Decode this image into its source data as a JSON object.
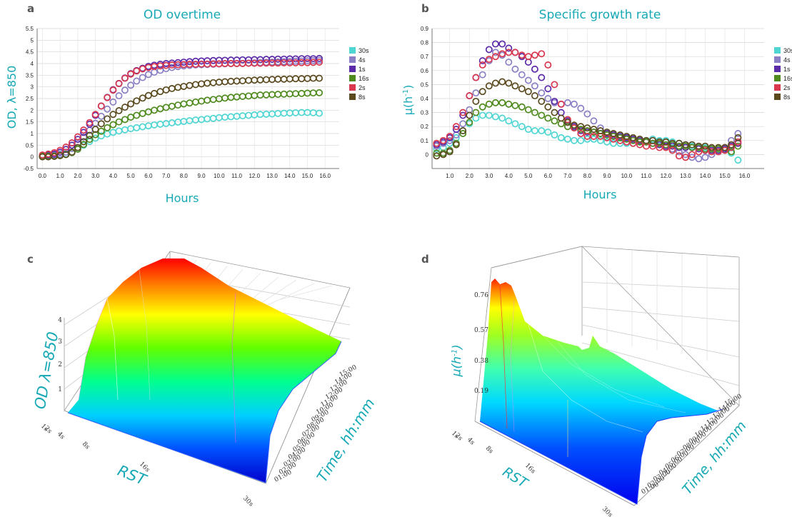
{
  "panels": {
    "a": {
      "label": "a"
    },
    "b": {
      "label": "b"
    },
    "c": {
      "label": "c"
    },
    "d": {
      "label": "d"
    }
  },
  "chart_data": [
    {
      "type": "scatter",
      "title": "OD overtime",
      "xlabel": "Hours",
      "ylabel": "OD, λ=850",
      "xlim": [
        -0.3,
        16.8
      ],
      "ylim": [
        -0.5,
        5.5
      ],
      "x_ticks": [
        "0.0",
        "1.0",
        "2.0",
        "3.0",
        "4.0",
        "5.0",
        "6.0",
        "7.0",
        "8.0",
        "9.0",
        "10.0",
        "11.0",
        "12.0",
        "13.0",
        "14.0",
        "15.0",
        "16.0"
      ],
      "y_ticks": [
        "-0.5",
        "0",
        "0.5",
        "1",
        "1.5",
        "2",
        "2.5",
        "3",
        "3.5",
        "4",
        "4.5",
        "5",
        "5.5"
      ],
      "grid": true,
      "legend": "right",
      "x": [
        0.0,
        0.33,
        0.67,
        1.0,
        1.33,
        1.67,
        2.0,
        2.33,
        2.67,
        3.0,
        3.33,
        3.67,
        4.0,
        4.33,
        4.67,
        5.0,
        5.33,
        5.67,
        6.0,
        6.33,
        6.67,
        7.0,
        7.33,
        7.67,
        8.0,
        8.33,
        8.67,
        9.0,
        9.33,
        9.67,
        10.0,
        10.33,
        10.67,
        11.0,
        11.33,
        11.67,
        12.0,
        12.33,
        12.67,
        13.0,
        13.33,
        13.67,
        14.0,
        14.33,
        14.67,
        15.0,
        15.33,
        15.67
      ],
      "series": [
        {
          "name": "30s",
          "color": "#4fd6d3",
          "values": [
            0.05,
            0.05,
            0.06,
            0.08,
            0.12,
            0.2,
            0.34,
            0.5,
            0.66,
            0.8,
            0.9,
            0.98,
            1.05,
            1.11,
            1.16,
            1.21,
            1.25,
            1.29,
            1.33,
            1.37,
            1.4,
            1.43,
            1.46,
            1.49,
            1.52,
            1.55,
            1.58,
            1.6,
            1.63,
            1.65,
            1.68,
            1.7,
            1.72,
            1.74,
            1.76,
            1.78,
            1.8,
            1.82,
            1.83,
            1.84,
            1.86,
            1.87,
            1.88,
            1.89,
            1.9,
            1.9,
            1.89,
            1.87
          ]
        },
        {
          "name": "4s",
          "color": "#8a7fc4",
          "values": [
            0.02,
            0.04,
            0.07,
            0.12,
            0.2,
            0.36,
            0.58,
            0.85,
            1.14,
            1.44,
            1.74,
            2.05,
            2.35,
            2.62,
            2.86,
            3.07,
            3.25,
            3.4,
            3.53,
            3.63,
            3.71,
            3.78,
            3.83,
            3.87,
            3.9,
            3.92,
            3.94,
            3.95,
            3.96,
            3.97,
            3.98,
            3.99,
            4.0,
            4.0,
            4.01,
            4.02,
            4.03,
            4.04,
            4.05,
            4.06,
            4.07,
            4.08,
            4.09,
            4.1,
            4.11,
            4.12,
            4.13,
            4.14
          ]
        },
        {
          "name": "1s",
          "color": "#5b2aa8",
          "values": [
            0.05,
            0.08,
            0.12,
            0.2,
            0.32,
            0.5,
            0.75,
            1.05,
            1.4,
            1.78,
            2.18,
            2.55,
            2.88,
            3.15,
            3.38,
            3.57,
            3.7,
            3.8,
            3.88,
            3.93,
            3.97,
            4.0,
            4.02,
            4.04,
            4.06,
            4.08,
            4.1,
            4.11,
            4.12,
            4.13,
            4.14,
            4.14,
            4.15,
            4.15,
            4.16,
            4.16,
            4.17,
            4.17,
            4.18,
            4.18,
            4.19,
            4.19,
            4.2,
            4.2,
            4.21,
            4.21,
            4.21,
            4.22
          ]
        },
        {
          "name": "16s",
          "color": "#4f8a1e",
          "values": [
            0.03,
            0.03,
            0.04,
            0.06,
            0.1,
            0.18,
            0.33,
            0.53,
            0.75,
            0.95,
            1.1,
            1.25,
            1.38,
            1.5,
            1.6,
            1.7,
            1.78,
            1.86,
            1.93,
            2.0,
            2.06,
            2.12,
            2.17,
            2.22,
            2.27,
            2.31,
            2.35,
            2.39,
            2.43,
            2.46,
            2.49,
            2.52,
            2.55,
            2.57,
            2.59,
            2.61,
            2.63,
            2.65,
            2.66,
            2.67,
            2.68,
            2.69,
            2.7,
            2.71,
            2.72,
            2.73,
            2.74,
            2.75
          ]
        },
        {
          "name": "2s",
          "color": "#d9384f",
          "values": [
            0.08,
            0.12,
            0.18,
            0.28,
            0.42,
            0.6,
            0.86,
            1.15,
            1.47,
            1.82,
            2.18,
            2.54,
            2.86,
            3.14,
            3.37,
            3.55,
            3.68,
            3.77,
            3.83,
            3.87,
            3.9,
            3.92,
            3.94,
            3.95,
            3.96,
            3.97,
            3.97,
            3.98,
            3.98,
            3.99,
            3.99,
            4.0,
            4.0,
            4.0,
            4.0,
            4.01,
            4.01,
            4.01,
            4.02,
            4.02,
            4.02,
            4.03,
            4.03,
            4.03,
            4.04,
            4.04,
            4.05,
            4.06
          ]
        },
        {
          "name": "8s",
          "color": "#5a4a1e",
          "values": [
            0.0,
            0.0,
            0.02,
            0.05,
            0.1,
            0.2,
            0.4,
            0.65,
            0.92,
            1.18,
            1.42,
            1.63,
            1.82,
            1.98,
            2.13,
            2.27,
            2.4,
            2.52,
            2.63,
            2.72,
            2.8,
            2.87,
            2.93,
            2.98,
            3.02,
            3.06,
            3.1,
            3.13,
            3.16,
            3.18,
            3.2,
            3.22,
            3.24,
            3.25,
            3.26,
            3.28,
            3.29,
            3.3,
            3.31,
            3.32,
            3.33,
            3.33,
            3.34,
            3.35,
            3.35,
            3.36,
            3.37,
            3.37
          ]
        }
      ]
    },
    {
      "type": "scatter",
      "title": "Specific growth rate",
      "xlabel": "Hours",
      "ylabel": "μ(h-1)",
      "xlim": [
        0.1,
        17.0
      ],
      "ylim": [
        -0.1,
        0.9
      ],
      "x_ticks": [
        "1.0",
        "2.0",
        "3.0",
        "4.0",
        "5.0",
        "6.0",
        "7.0",
        "8.0",
        "9.0",
        "10.0",
        "11.0",
        "12.0",
        "13.0",
        "14.0",
        "15.0",
        "16.0"
      ],
      "y_ticks": [
        "0",
        "0.1",
        "0.2",
        "0.3",
        "0.4",
        "0.5",
        "0.6",
        "0.7",
        "0.8",
        "0.9"
      ],
      "grid": true,
      "legend": "right",
      "x": [
        0.33,
        0.67,
        1.0,
        1.33,
        1.67,
        2.0,
        2.33,
        2.67,
        3.0,
        3.33,
        3.67,
        4.0,
        4.33,
        4.67,
        5.0,
        5.33,
        5.67,
        6.0,
        6.33,
        6.67,
        7.0,
        7.33,
        7.67,
        8.0,
        8.33,
        8.67,
        9.0,
        9.33,
        9.67,
        10.0,
        10.33,
        10.67,
        11.0,
        11.33,
        11.67,
        12.0,
        12.33,
        12.67,
        13.0,
        13.33,
        13.67,
        14.0,
        14.33,
        14.67,
        15.0,
        15.33,
        15.67
      ],
      "series": [
        {
          "name": "30s",
          "color": "#4fd6d3",
          "values": [
            0.04,
            0.05,
            0.08,
            0.12,
            0.17,
            0.22,
            0.26,
            0.28,
            0.28,
            0.27,
            0.26,
            0.24,
            0.22,
            0.2,
            0.18,
            0.17,
            0.17,
            0.16,
            0.14,
            0.12,
            0.11,
            0.1,
            0.1,
            0.11,
            0.11,
            0.1,
            0.09,
            0.08,
            0.08,
            0.08,
            0.08,
            0.09,
            0.1,
            0.11,
            0.1,
            0.1,
            0.09,
            0.08,
            0.07,
            0.06,
            0.05,
            0.05,
            0.04,
            0.04,
            0.04,
            0.01,
            -0.04
          ]
        },
        {
          "name": "4s",
          "color": "#8a7fc4",
          "values": [
            0.06,
            0.08,
            0.1,
            0.14,
            0.22,
            0.32,
            0.44,
            0.57,
            0.67,
            0.73,
            0.71,
            0.66,
            0.61,
            0.57,
            0.53,
            0.49,
            0.44,
            0.4,
            0.37,
            0.36,
            0.37,
            0.36,
            0.33,
            0.29,
            0.24,
            0.19,
            0.15,
            0.13,
            0.12,
            0.12,
            0.11,
            0.1,
            0.09,
            0.08,
            0.07,
            0.06,
            0.04,
            0.02,
            0.0,
            -0.02,
            -0.03,
            -0.02,
            0.0,
            0.02,
            0.05,
            0.1,
            0.15
          ]
        },
        {
          "name": "1s",
          "color": "#5b2aa8",
          "values": [
            0.07,
            0.09,
            0.12,
            0.18,
            0.28,
            0.42,
            0.55,
            0.67,
            0.75,
            0.79,
            0.79,
            0.76,
            0.73,
            0.7,
            0.66,
            0.61,
            0.55,
            0.47,
            0.38,
            0.3,
            0.24,
            0.2,
            0.17,
            0.16,
            0.16,
            0.15,
            0.15,
            0.14,
            0.13,
            0.12,
            0.11,
            0.1,
            0.09,
            0.08,
            0.07,
            0.06,
            0.06,
            0.05,
            0.05,
            0.05,
            0.04,
            0.03,
            0.03,
            0.03,
            0.04,
            0.06,
            0.08
          ]
        },
        {
          "name": "16s",
          "color": "#4f8a1e",
          "values": [
            0.01,
            0.01,
            0.03,
            0.08,
            0.15,
            0.23,
            0.3,
            0.34,
            0.36,
            0.37,
            0.37,
            0.36,
            0.35,
            0.34,
            0.32,
            0.3,
            0.28,
            0.26,
            0.24,
            0.22,
            0.2,
            0.19,
            0.18,
            0.17,
            0.16,
            0.15,
            0.14,
            0.13,
            0.12,
            0.11,
            0.1,
            0.09,
            0.09,
            0.08,
            0.08,
            0.07,
            0.07,
            0.06,
            0.06,
            0.05,
            0.05,
            0.04,
            0.04,
            0.04,
            0.03,
            0.02,
            0.06
          ]
        },
        {
          "name": "2s",
          "color": "#d9384f",
          "values": [
            0.08,
            0.1,
            0.13,
            0.2,
            0.3,
            0.42,
            0.55,
            0.64,
            0.68,
            0.7,
            0.72,
            0.73,
            0.73,
            0.71,
            0.7,
            0.71,
            0.72,
            0.64,
            0.5,
            0.36,
            0.25,
            0.19,
            0.15,
            0.13,
            0.13,
            0.13,
            0.12,
            0.11,
            0.1,
            0.09,
            0.08,
            0.07,
            0.06,
            0.06,
            0.05,
            0.05,
            0.03,
            -0.01,
            -0.02,
            0.0,
            0.02,
            0.03,
            0.02,
            0.02,
            0.03,
            0.05,
            0.09
          ]
        },
        {
          "name": "8s",
          "color": "#5a4a1e",
          "values": [
            -0.01,
            0.0,
            0.02,
            0.07,
            0.17,
            0.28,
            0.38,
            0.45,
            0.49,
            0.51,
            0.52,
            0.51,
            0.49,
            0.47,
            0.45,
            0.42,
            0.38,
            0.34,
            0.3,
            0.26,
            0.23,
            0.21,
            0.2,
            0.19,
            0.18,
            0.17,
            0.16,
            0.15,
            0.14,
            0.13,
            0.12,
            0.11,
            0.1,
            0.1,
            0.09,
            0.09,
            0.08,
            0.08,
            0.07,
            0.07,
            0.06,
            0.06,
            0.05,
            0.05,
            0.05,
            0.07,
            0.12
          ]
        }
      ]
    },
    {
      "type": "surface3d",
      "zlabel": "OD λ=850",
      "xlabel": "RST",
      "ylabel": "Time, hh:mm",
      "z_ticks": [
        "1",
        "2",
        "3",
        "4"
      ],
      "x_ticks": [
        "1s",
        "2s",
        "4s",
        "8s",
        "16s",
        "30s"
      ],
      "y_ticks": [
        "01:00",
        "02:00",
        "03:00",
        "04:00",
        "05:00",
        "06:00",
        "07:00",
        "08:00",
        "09:00",
        "10:00",
        "11:00",
        "12:00",
        "13:00",
        "14:00",
        "15:00"
      ],
      "zlim": [
        0,
        4.3
      ],
      "colormap": "jet"
    },
    {
      "type": "surface3d",
      "zlabel": "μ(h-1)",
      "xlabel": "RST",
      "ylabel": "Time, hh:mm",
      "z_ticks": [
        "0.19",
        "0.38",
        "0.57",
        "0.76"
      ],
      "x_ticks": [
        "1s",
        "2s",
        "4s",
        "8s",
        "16s",
        "30s"
      ],
      "y_ticks": [
        "01:00",
        "02:00",
        "03:00",
        "04:00",
        "05:00",
        "06:00",
        "07:00",
        "08:00",
        "09:00",
        "10:00",
        "11:00",
        "12:00",
        "13:00",
        "14:00",
        "15:00"
      ],
      "zlim": [
        0,
        0.8
      ],
      "colormap": "jet"
    }
  ]
}
